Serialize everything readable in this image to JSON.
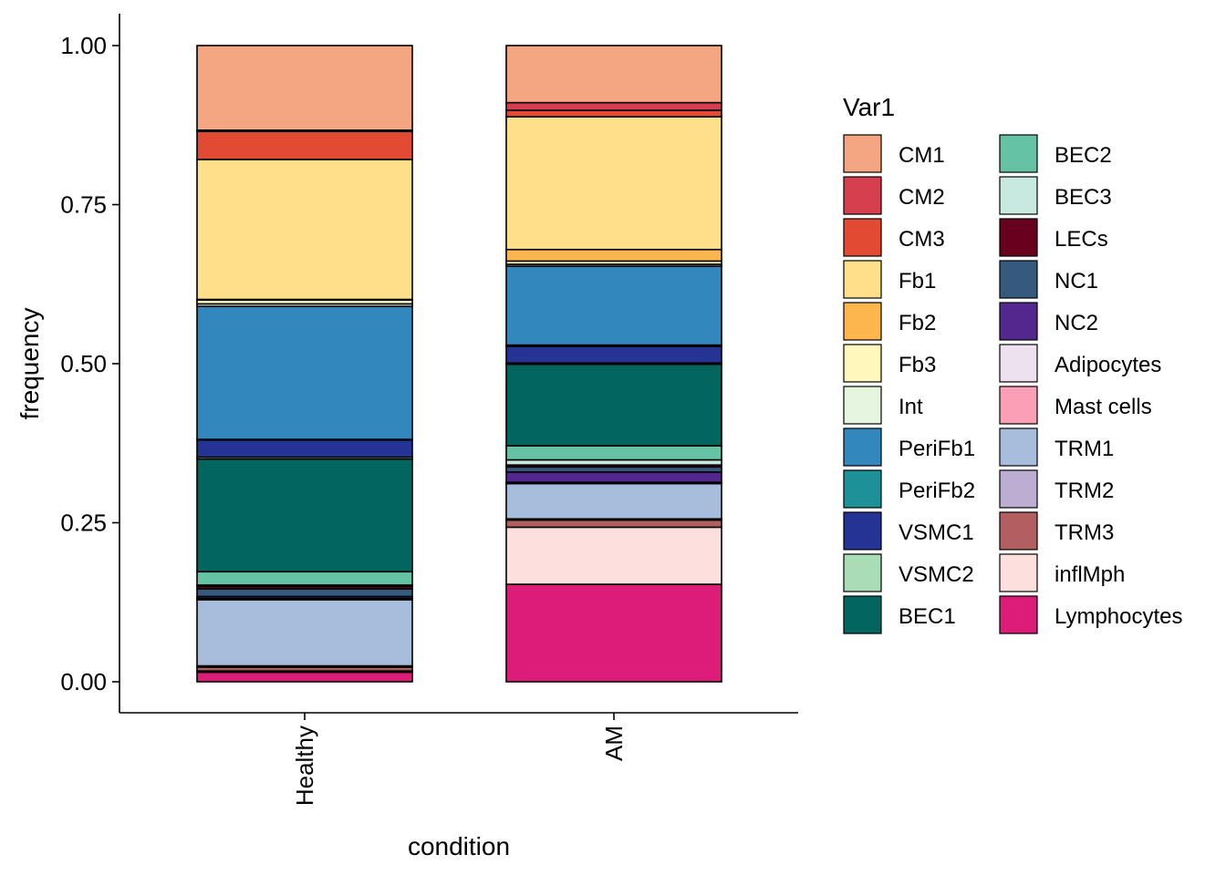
{
  "chart_data": {
    "type": "bar",
    "stacked": true,
    "xlabel": "condition",
    "ylabel": "frequency",
    "ylim": [
      0,
      1
    ],
    "yticks": [
      "0.00",
      "0.25",
      "0.50",
      "0.75",
      "1.00"
    ],
    "grid": false,
    "legend_title": "Var1",
    "legend_position": "right",
    "categories": [
      "Healthy",
      "AM"
    ],
    "series": [
      {
        "name": "Lymphocytes",
        "color": "#DD1C77",
        "values": [
          0.015,
          0.152
        ]
      },
      {
        "name": "inflMph",
        "color": "#FDE0DD",
        "values": [
          0.002,
          0.089
        ]
      },
      {
        "name": "TRM3",
        "color": "#B35F5F",
        "values": [
          0.006,
          0.011
        ]
      },
      {
        "name": "TRM2",
        "color": "#BCAED3",
        "values": [
          0.002,
          0.002
        ]
      },
      {
        "name": "TRM1",
        "color": "#A6BDDB",
        "values": [
          0.104,
          0.055
        ]
      },
      {
        "name": "Mast cells",
        "color": "#FA9FB5",
        "values": [
          0.001,
          0.001
        ]
      },
      {
        "name": "Adipocytes",
        "color": "#EDE1F0",
        "values": [
          0.001,
          0.001
        ]
      },
      {
        "name": "NC2",
        "color": "#54278F",
        "values": [
          0.003,
          0.016
        ]
      },
      {
        "name": "NC1",
        "color": "#365A7D",
        "values": [
          0.012,
          0.008
        ]
      },
      {
        "name": "LECs",
        "color": "#67001F",
        "values": [
          0.004,
          0.003
        ]
      },
      {
        "name": "BEC3",
        "color": "#C7E9E0",
        "values": [
          0.002,
          0.008
        ]
      },
      {
        "name": "BEC2",
        "color": "#66C2A4",
        "values": [
          0.021,
          0.022
        ]
      },
      {
        "name": "BEC1",
        "color": "#02665E",
        "values": [
          0.177,
          0.127
        ]
      },
      {
        "name": "VSMC2",
        "color": "#A8DDB5",
        "values": [
          0.003,
          0.002
        ]
      },
      {
        "name": "VSMC1",
        "color": "#253494",
        "values": [
          0.027,
          0.026
        ]
      },
      {
        "name": "PeriFb2",
        "color": "#1D9198",
        "values": [
          0.001,
          0.002
        ]
      },
      {
        "name": "PeriFb1",
        "color": "#3288BD",
        "values": [
          0.209,
          0.123
        ]
      },
      {
        "name": "Int",
        "color": "#E5F5E0",
        "values": [
          0.004,
          0.003
        ]
      },
      {
        "name": "Fb3",
        "color": "#FFF7BC",
        "values": [
          0.006,
          0.005
        ]
      },
      {
        "name": "Fb2",
        "color": "#FDB64E",
        "values": [
          0.001,
          0.018
        ]
      },
      {
        "name": "Fb1",
        "color": "#FEE08B",
        "values": [
          0.22,
          0.207
        ]
      },
      {
        "name": "CM3",
        "color": "#E34A33",
        "values": [
          0.044,
          0.01
        ]
      },
      {
        "name": "CM2",
        "color": "#D6404E",
        "values": [
          0.002,
          0.012
        ]
      },
      {
        "name": "CM1",
        "color": "#F4A582",
        "values": [
          0.133,
          0.089
        ]
      }
    ],
    "legend_order": [
      "CM1",
      "CM2",
      "CM3",
      "Fb1",
      "Fb2",
      "Fb3",
      "Int",
      "PeriFb1",
      "PeriFb2",
      "VSMC1",
      "VSMC2",
      "BEC1",
      "BEC2",
      "BEC3",
      "LECs",
      "NC1",
      "NC2",
      "Adipocytes",
      "Mast cells",
      "TRM1",
      "TRM2",
      "TRM3",
      "inflMph",
      "Lymphocytes"
    ]
  }
}
